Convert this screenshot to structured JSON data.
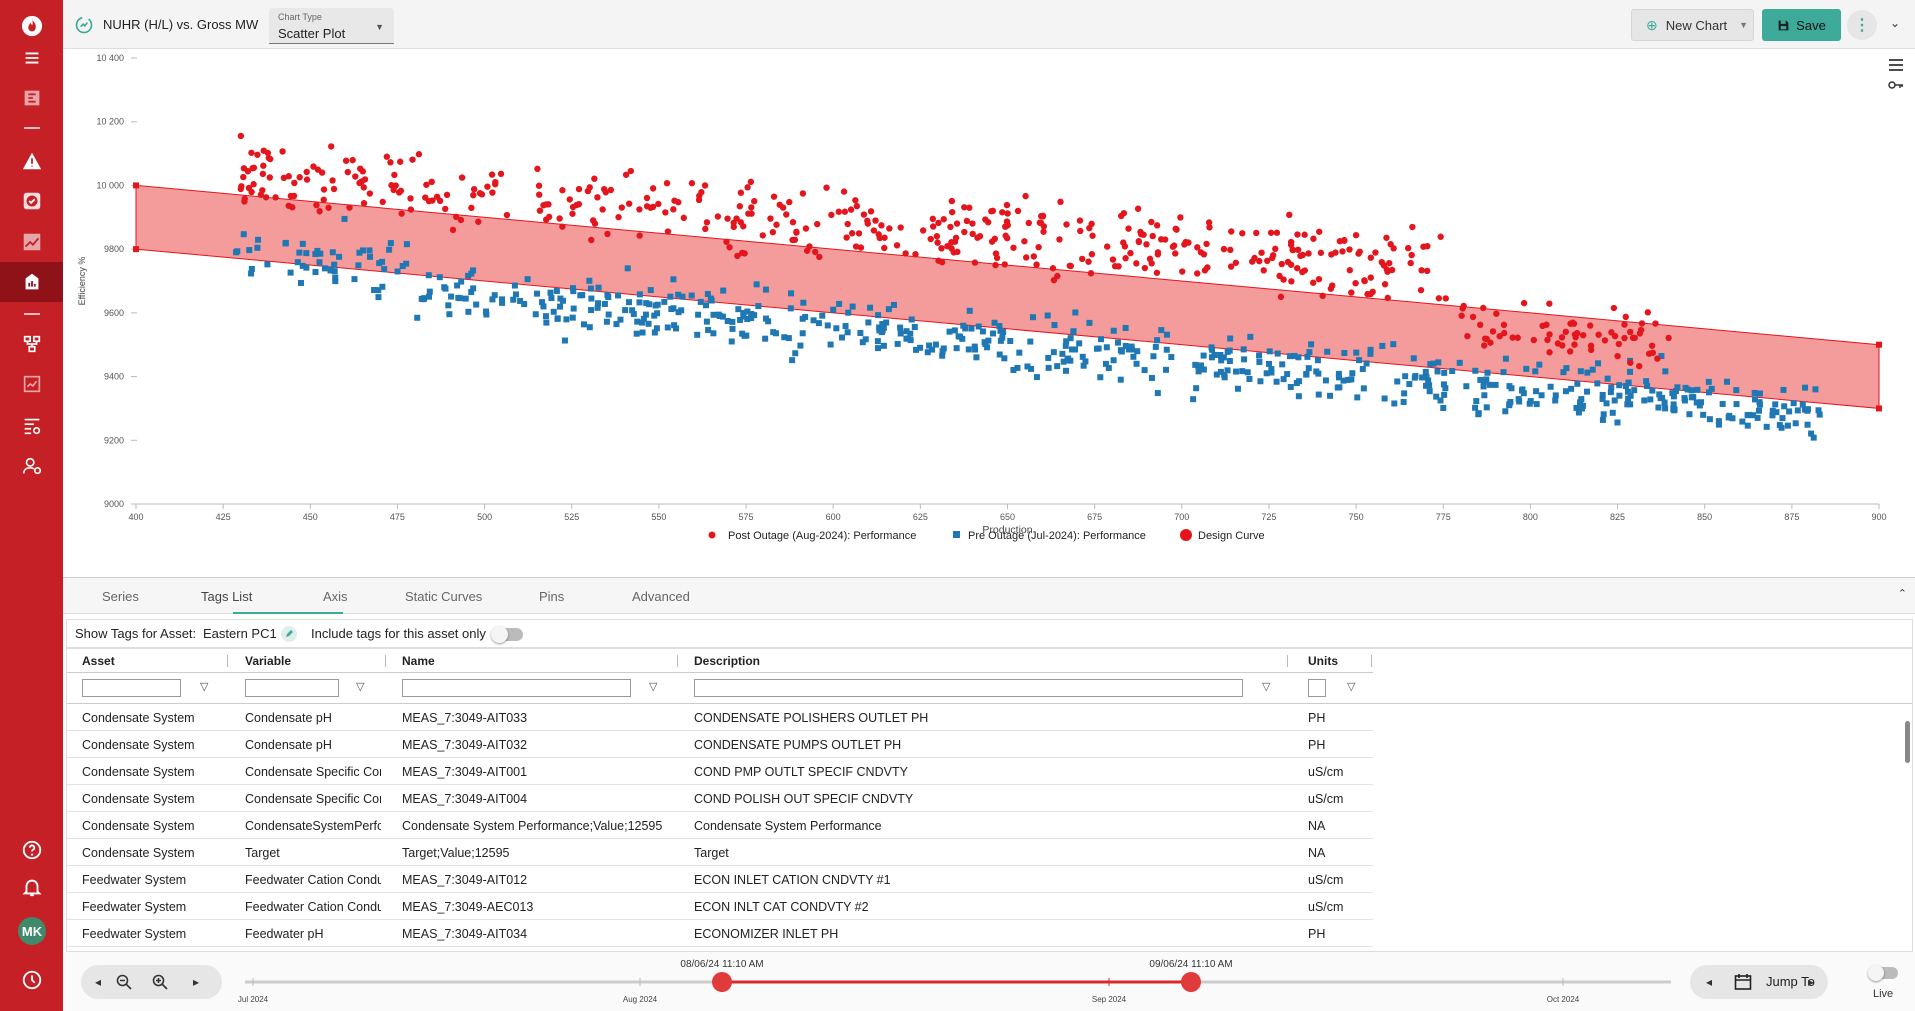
{
  "sidebar": {
    "items": [
      {
        "name": "logo-flame-icon"
      },
      {
        "name": "menu-icon"
      },
      {
        "name": "dashboard-icon"
      },
      {
        "name": "alert-icon"
      },
      {
        "name": "check-circle-icon"
      },
      {
        "name": "trend-icon"
      },
      {
        "name": "analytics-icon"
      },
      {
        "name": "hierarchy-icon"
      },
      {
        "name": "report-icon"
      },
      {
        "name": "list-settings-icon"
      },
      {
        "name": "user-settings-icon"
      },
      {
        "name": "help-icon"
      },
      {
        "name": "bell-icon"
      },
      {
        "name": "history-icon"
      }
    ],
    "avatar_initials": "MK"
  },
  "header": {
    "title": "NUHR (H/L) vs. Gross MW",
    "chart_type_label": "Chart Type",
    "chart_type_value": "Scatter Plot",
    "new_chart_label": "New Chart",
    "save_label": "Save"
  },
  "chart_data": {
    "type": "scatter",
    "xlabel": "Production",
    "ylabel": "Efficiency %",
    "xlim": [
      400,
      900
    ],
    "ylim": [
      9000,
      10400
    ],
    "x_ticks": [
      "400",
      "425",
      "450",
      "475",
      "500",
      "525",
      "550",
      "575",
      "600",
      "625",
      "650",
      "675",
      "700",
      "725",
      "750",
      "775",
      "800",
      "825",
      "850",
      "875",
      "900"
    ],
    "y_ticks": [
      "10 400",
      "10 200",
      "10 000",
      "9800",
      "9600",
      "9400",
      "9200",
      "9000"
    ],
    "legend_placement": "bottom",
    "series": [
      {
        "name": "Post Outage (Aug-2024): Performance",
        "marker": "circle",
        "color": "#e3161e"
      },
      {
        "name": "Pre Outage (Jul-2024): Performance",
        "marker": "square",
        "color": "#1f77b4"
      },
      {
        "name": "Design Curve",
        "marker": "band",
        "color": "#e3161e",
        "upper": [
          [
            400,
            10000
          ],
          [
            900,
            9500
          ]
        ],
        "lower": [
          [
            400,
            9800
          ],
          [
            900,
            9300
          ]
        ]
      }
    ]
  },
  "tabs": [
    {
      "label": "Series"
    },
    {
      "label": "Tags List"
    },
    {
      "label": "Axis"
    },
    {
      "label": "Static Curves"
    },
    {
      "label": "Pins"
    },
    {
      "label": "Advanced"
    }
  ],
  "asset_bar": {
    "show_label": "Show Tags for Asset:",
    "asset": "Eastern PC1",
    "include_label": "Include tags for this asset only"
  },
  "table": {
    "columns": [
      "Asset",
      "Variable",
      "Name",
      "Description",
      "Units"
    ],
    "rows": [
      [
        "Condensate System",
        "Condensate pH",
        "MEAS_7:3049-AIT033",
        "CONDENSATE POLISHERS OUTLET PH",
        "PH"
      ],
      [
        "Condensate System",
        "Condensate pH",
        "MEAS_7:3049-AIT032",
        "CONDENSATE PUMPS OUTLET PH",
        "PH"
      ],
      [
        "Condensate System",
        "Condensate Specific Con",
        "MEAS_7:3049-AIT001",
        "COND PMP OUTLT SPECIF CNDVTY",
        "uS/cm"
      ],
      [
        "Condensate System",
        "Condensate Specific Con",
        "MEAS_7:3049-AIT004",
        "COND POLISH OUT SPECIF CNDVTY",
        "uS/cm"
      ],
      [
        "Condensate System",
        "CondensateSystemPerfo",
        "Condensate System Performance;Value;12595",
        "Condensate System Performance",
        "NA"
      ],
      [
        "Condensate System",
        "Target",
        "Target;Value;12595",
        "Target",
        "NA"
      ],
      [
        "Feedwater System",
        "Feedwater Cation Condu",
        "MEAS_7:3049-AIT012",
        "ECON INLET CATION CNDVTY #1",
        "uS/cm"
      ],
      [
        "Feedwater System",
        "Feedwater Cation Condu",
        "MEAS_7:3049-AEC013",
        "ECON INLT CAT CONDVTY #2",
        "uS/cm"
      ],
      [
        "Feedwater System",
        "Feedwater pH",
        "MEAS_7:3049-AIT034",
        "ECONOMIZER INLET PH",
        "PH"
      ]
    ]
  },
  "timeline": {
    "start_label": "08/06/24 11:10 AM",
    "end_label": "09/06/24 11:10 AM",
    "months": [
      "Jul 2024",
      "Aug 2024",
      "Sep 2024",
      "Oct 2024"
    ],
    "jump_label": "Jump To",
    "live_label": "Live"
  }
}
